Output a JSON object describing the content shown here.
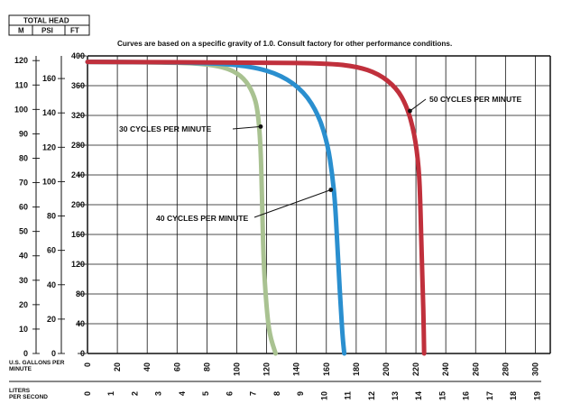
{
  "chart_data": {
    "type": "line",
    "note": "Curves are based on a specific gravity of 1.0. Consult factory for other performance conditions.",
    "header": {
      "title": "TOTAL HEAD",
      "col_m": "M",
      "col_psi": "PSI",
      "col_ft": "FT"
    },
    "xlabel": "U.S. GALLONS PER MINUTE",
    "x2label": "LITERS PER SECOND",
    "xlim": [
      0,
      310
    ],
    "ylim": [
      0,
      400
    ],
    "grid": true,
    "x_ticks": [
      "0",
      "20",
      "40",
      "60",
      "80",
      "100",
      "120",
      "140",
      "160",
      "180",
      "200",
      "220",
      "240",
      "260",
      "280",
      "300"
    ],
    "x2_ticks": [
      "0",
      "1",
      "2",
      "3",
      "4",
      "5",
      "6",
      "7",
      "8",
      "9",
      "10",
      "11",
      "12",
      "13",
      "14",
      "15",
      "16",
      "17",
      "18",
      "19"
    ],
    "ft_ticks": [
      "0",
      "40",
      "80",
      "120",
      "160",
      "200",
      "240",
      "280",
      "320",
      "360",
      "400"
    ],
    "psi_ticks": [
      "0",
      "20",
      "40",
      "60",
      "80",
      "100",
      "120",
      "140",
      "160"
    ],
    "m_ticks": [
      "0",
      "10",
      "20",
      "30",
      "40",
      "50",
      "60",
      "70",
      "80",
      "90",
      "100",
      "110",
      "120"
    ],
    "series": [
      {
        "name": "30 CYCLES PER MINUTE",
        "color": "#a9c291",
        "points": [
          [
            0,
            392
          ],
          [
            60,
            391
          ],
          [
            80,
            389
          ],
          [
            95,
            383
          ],
          [
            105,
            370
          ],
          [
            111,
            350
          ],
          [
            114,
            328
          ],
          [
            116,
            280
          ],
          [
            117,
            200
          ],
          [
            118,
            120
          ],
          [
            120,
            60
          ],
          [
            122,
            25
          ],
          [
            126,
            0
          ]
        ]
      },
      {
        "name": "40 CYCLES PER MINUTE",
        "color": "#2a8fcf",
        "points": [
          [
            0,
            392
          ],
          [
            80,
            391
          ],
          [
            110,
            386
          ],
          [
            130,
            374
          ],
          [
            145,
            352
          ],
          [
            155,
            320
          ],
          [
            161,
            280
          ],
          [
            164,
            240
          ],
          [
            166,
            200
          ],
          [
            168,
            120
          ],
          [
            170,
            50
          ],
          [
            171,
            20
          ],
          [
            172,
            0
          ]
        ]
      },
      {
        "name": "50 CYCLES PER MINUTE",
        "color": "#c0303c",
        "points": [
          [
            0,
            392
          ],
          [
            120,
            391
          ],
          [
            160,
            390
          ],
          [
            180,
            386
          ],
          [
            195,
            376
          ],
          [
            207,
            357
          ],
          [
            214,
            332
          ],
          [
            219,
            296
          ],
          [
            222,
            250
          ],
          [
            223,
            200
          ],
          [
            224,
            120
          ],
          [
            225,
            60
          ],
          [
            225.5,
            0
          ]
        ]
      }
    ],
    "annotations": [
      {
        "text": "30 CYCLES PER MINUTE",
        "series": 0,
        "at": [
          116,
          305
        ]
      },
      {
        "text": "40 CYCLES PER MINUTE",
        "series": 1,
        "at": [
          163,
          220
        ]
      },
      {
        "text": "50 CYCLES PER MINUTE",
        "series": 2,
        "at": [
          216,
          326
        ]
      }
    ]
  }
}
